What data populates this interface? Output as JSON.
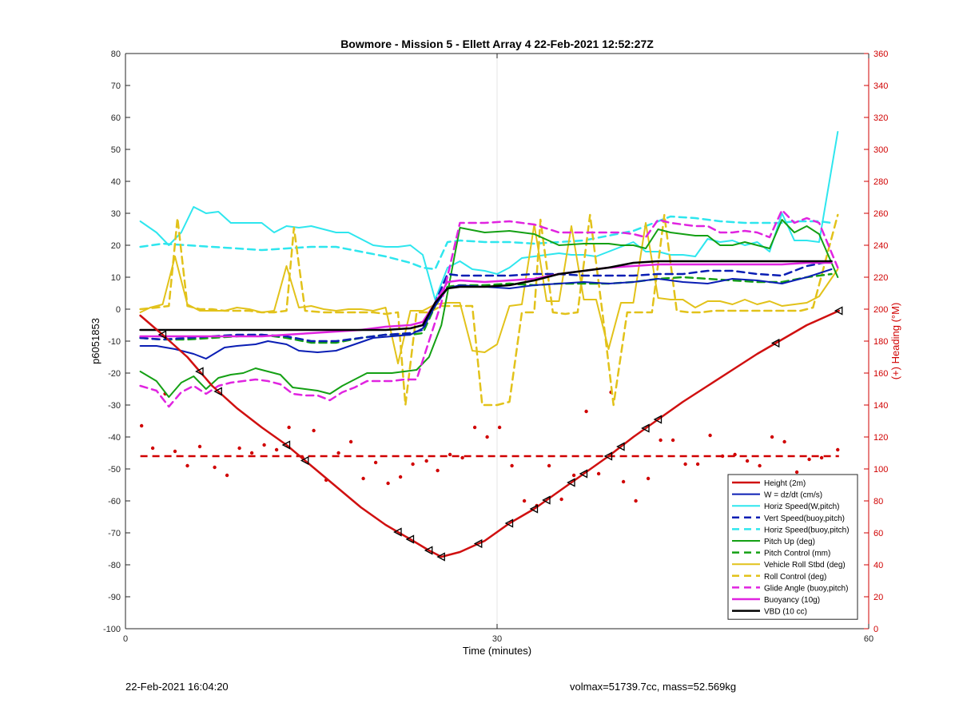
{
  "chart_data": {
    "type": "line",
    "title": "Bowmore - Mission 5 - Ellett Array 4 22-Feb-2021 12:52:27Z",
    "xlabel": "Time (minutes)",
    "ylabel": "p6051853",
    "ylabel_right": "(+) Heading (°M)",
    "xlim": [
      0,
      60
    ],
    "ylim": [
      -100,
      80
    ],
    "ylim_right": [
      0,
      360
    ],
    "xticks": [
      0,
      30,
      60
    ],
    "yticks": [
      -100,
      -90,
      -80,
      -70,
      -60,
      -50,
      -40,
      -30,
      -20,
      -10,
      0,
      10,
      20,
      30,
      40,
      50,
      60,
      70,
      80
    ],
    "yticks_right": [
      0,
      20,
      40,
      60,
      80,
      100,
      120,
      140,
      160,
      180,
      200,
      220,
      240,
      260,
      280,
      300,
      320,
      340,
      360
    ],
    "grid": "x at 30 only",
    "legend_position": "bottom-right",
    "colors": {
      "right_axis": "#d00000",
      "height": "#d01010",
      "w": "#0a1eb4",
      "horiz_speed": "#2ee6ee",
      "pitch": "#14a014",
      "roll": "#e2c21a",
      "glide": "#e024e0",
      "vbd": "#000000"
    },
    "series": [
      {
        "name": "Height (2m)",
        "color": "#d01010",
        "style": "solid",
        "width": 2.5,
        "x": [
          1.2,
          3,
          5,
          7,
          9,
          11,
          13,
          15,
          17,
          19,
          21,
          23,
          24.5,
          25.5,
          27,
          29,
          31,
          33,
          35,
          37,
          39,
          41,
          43,
          45,
          47,
          49,
          51,
          53,
          55,
          57.6
        ],
        "y": [
          -2,
          -8,
          -15,
          -24,
          -31,
          -37,
          -42.5,
          -49,
          -55.5,
          -62,
          -67.5,
          -72,
          -75.5,
          -77.5,
          -76,
          -72.5,
          -67,
          -62.5,
          -57,
          -51.5,
          -46,
          -40,
          -34.5,
          -29,
          -24,
          -19,
          -14,
          -9.5,
          -5,
          -0.5
        ]
      },
      {
        "name": "W = dz/dt (cm/s)",
        "color": "#0a1eb4",
        "style": "solid",
        "width": 2,
        "x": [
          1.2,
          2.5,
          4,
          5.5,
          6.5,
          8,
          9,
          10.5,
          11.5,
          13,
          14,
          15.5,
          17,
          18.5,
          20,
          21.5,
          23,
          24,
          25,
          26,
          27,
          29,
          31,
          33,
          35,
          37,
          39,
          41,
          43,
          45,
          47,
          49,
          51,
          53,
          55,
          57
        ],
        "y": [
          -11.5,
          -11.5,
          -12.5,
          -14,
          -15.5,
          -12,
          -11.5,
          -11,
          -10,
          -11,
          -13,
          -13.5,
          -13,
          -11,
          -9,
          -8.5,
          -8,
          -6,
          1,
          6.5,
          7.5,
          7,
          6.5,
          7.5,
          8,
          8.5,
          8,
          8.5,
          9.5,
          8.5,
          8,
          9.5,
          9,
          8,
          10,
          12.5
        ]
      },
      {
        "name": "Horiz Speed(W,pitch)",
        "color": "#2ee6ee",
        "style": "solid",
        "width": 2,
        "x": [
          1.2,
          2.5,
          3.5,
          4.5,
          5.5,
          6.5,
          7.5,
          8.5,
          10,
          11,
          12,
          13,
          14,
          15,
          16,
          17,
          18,
          19,
          20,
          21,
          22,
          23,
          24,
          25,
          26,
          27,
          28,
          29,
          30,
          31,
          32,
          33,
          34,
          35,
          36,
          37,
          38,
          39,
          40,
          41,
          42,
          43,
          44,
          45,
          46,
          47,
          48,
          49,
          50,
          51,
          52,
          53,
          54,
          55,
          56,
          57.5
        ],
        "y": [
          27.5,
          24,
          20,
          24,
          32,
          30,
          30.5,
          27,
          27,
          27,
          24,
          26,
          25.5,
          26,
          25,
          24,
          24,
          22,
          20,
          19.5,
          19.5,
          20,
          17,
          3,
          13,
          15,
          12.5,
          12,
          11,
          13,
          16,
          16.5,
          17,
          17.5,
          17,
          17,
          16.5,
          18,
          19.5,
          21,
          18,
          18,
          17,
          17,
          16.5,
          22,
          21,
          21.5,
          20,
          21,
          18,
          30,
          21.5,
          21.5,
          21,
          55.5
        ]
      },
      {
        "name": "Vert Speed(buoy,pitch)",
        "color": "#0a1eb4",
        "style": "dashed",
        "width": 2.5,
        "x": [
          1.2,
          3,
          5,
          7,
          9,
          11,
          13,
          15,
          17,
          19,
          21,
          23,
          24,
          25,
          26,
          27,
          29,
          31,
          33,
          35,
          37,
          39,
          41,
          43,
          45,
          47,
          49,
          51,
          53,
          55,
          57
        ],
        "y": [
          -9,
          -9.5,
          -9,
          -8.5,
          -8,
          -8,
          -8.5,
          -10,
          -10,
          -9,
          -8,
          -7.5,
          -6.5,
          2,
          11,
          10.5,
          10.5,
          10.5,
          11,
          11,
          10.5,
          10.5,
          10.5,
          11,
          11,
          12,
          12,
          11,
          10.5,
          13.5,
          15
        ]
      },
      {
        "name": "Horiz Speed(buoy,pitch)",
        "color": "#2ee6ee",
        "style": "dashed",
        "width": 2.5,
        "x": [
          1.2,
          3,
          5,
          7,
          9,
          11,
          13,
          15,
          17,
          19,
          21,
          23,
          24,
          25,
          26,
          27,
          29,
          31,
          33,
          35,
          37,
          39,
          41,
          42,
          44,
          46,
          48,
          50,
          52,
          53,
          54,
          55,
          56,
          57
        ],
        "y": [
          19.5,
          20.5,
          20,
          19.5,
          19,
          18.5,
          19,
          19.5,
          19.5,
          18,
          16.5,
          14.5,
          13,
          12.5,
          21,
          21.5,
          21,
          21,
          20.5,
          21,
          21.5,
          23,
          24.5,
          26,
          29,
          28.5,
          27.5,
          27,
          27,
          27,
          27.5,
          27.5,
          27.5,
          27
        ]
      },
      {
        "name": "Pitch Up (deg)",
        "color": "#14a014",
        "style": "solid",
        "width": 2,
        "x": [
          1.2,
          2.5,
          3.5,
          4.5,
          5.5,
          6.5,
          7.5,
          8.5,
          9.5,
          10.5,
          11.5,
          12.5,
          13.5,
          14.5,
          15.5,
          16.5,
          17.5,
          18.5,
          19.5,
          20.5,
          21.5,
          22.5,
          23.5,
          24.5,
          25.5,
          27,
          29,
          31,
          33,
          35,
          37,
          39,
          40,
          41,
          42,
          43,
          44,
          45,
          46,
          47,
          48,
          49,
          50,
          51,
          52,
          53,
          54,
          55,
          56,
          57.5
        ],
        "y": [
          -19.5,
          -22.5,
          -27.5,
          -23,
          -21,
          -25,
          -21.5,
          -20.5,
          -20,
          -18.5,
          -19.5,
          -20.5,
          -24.5,
          -25,
          -25.5,
          -26.5,
          -24,
          -22,
          -20,
          -20,
          -20,
          -19.5,
          -19,
          -15,
          -5,
          25.5,
          24,
          24.5,
          23.5,
          20,
          20.5,
          20.5,
          20,
          20,
          19,
          25,
          24,
          23.5,
          23,
          23,
          20,
          20,
          21,
          20,
          19,
          28,
          24,
          26,
          23.5,
          10
        ]
      },
      {
        "name": "Pitch Control (mm)",
        "color": "#14a014",
        "style": "dashed",
        "width": 2.5,
        "x": [
          1.2,
          3,
          5,
          7,
          9,
          11,
          13,
          15,
          17,
          19,
          21,
          23,
          24,
          25,
          26,
          27,
          29,
          31,
          33,
          35,
          37,
          39,
          41,
          43,
          45,
          47,
          49,
          51,
          53,
          55,
          57
        ],
        "y": [
          -9,
          -9.5,
          -9.5,
          -9,
          -8.5,
          -8,
          -9,
          -10.5,
          -10.5,
          -9,
          -8,
          -8,
          -7.5,
          1,
          7,
          7.5,
          7.5,
          8,
          7.5,
          8,
          8,
          8,
          8.5,
          9.5,
          10,
          9.5,
          9,
          8.5,
          8.5,
          10,
          11
        ]
      },
      {
        "name": "Vehicle Roll Stbd (deg)",
        "color": "#e2c21a",
        "style": "solid",
        "width": 2,
        "x": [
          1.2,
          2,
          3,
          4,
          5,
          6,
          7,
          8,
          9,
          10,
          11,
          12,
          13,
          14,
          15,
          16,
          17,
          18,
          19,
          20,
          21,
          22,
          23,
          24,
          25,
          26,
          27,
          28,
          29,
          30,
          31,
          32,
          33,
          34,
          35,
          36,
          37,
          38,
          39,
          40,
          41,
          42,
          43,
          44,
          45,
          46,
          47,
          48,
          49,
          50,
          51,
          52,
          53,
          54,
          55,
          56,
          57.5
        ],
        "y": [
          -1,
          0.5,
          1.5,
          16.5,
          1.5,
          -0.5,
          -0.5,
          -0.5,
          0.5,
          0,
          -1,
          -0.5,
          13.5,
          0.5,
          1,
          0,
          -0.5,
          0,
          0,
          -0.5,
          0.5,
          -17,
          -0.5,
          -0.5,
          1.5,
          2,
          2,
          -13,
          -13.5,
          -11,
          1,
          1.5,
          26.5,
          2.5,
          2.5,
          26,
          3,
          3,
          -12.5,
          2,
          2,
          27,
          3.5,
          3,
          3,
          0.5,
          2.5,
          2.5,
          1.5,
          3,
          1.5,
          2.5,
          1,
          1.5,
          2,
          4,
          12.5
        ]
      },
      {
        "name": "Roll Control (deg)",
        "color": "#e2c21a",
        "style": "dashed",
        "width": 2.5,
        "x": [
          1.2,
          2.5,
          3.5,
          4.2,
          5,
          6,
          7,
          8,
          9,
          10,
          11,
          12,
          13,
          13.6,
          14.5,
          16,
          17,
          18,
          19,
          20,
          21,
          22,
          22.6,
          23.5,
          24.5,
          25.5,
          27,
          28,
          28.8,
          30,
          31,
          32,
          33,
          33.5,
          34.5,
          35.5,
          36.5,
          37.5,
          38.5,
          39.4,
          40.5,
          41.5,
          42.5,
          43.5,
          44.5,
          45.5,
          46.5,
          47.5,
          48.5,
          49.5,
          50.5,
          51.5,
          52.5,
          53.5,
          54.5,
          55.5,
          57.5
        ],
        "y": [
          0,
          0.5,
          1,
          28.5,
          1,
          0,
          0,
          -0.5,
          -0.5,
          -0.5,
          -1,
          -1,
          -0.5,
          25.5,
          -0.5,
          -1,
          -1,
          -1,
          -1,
          -1,
          -1.5,
          -1,
          -30,
          -1,
          -1,
          1,
          1,
          1,
          -30,
          -30,
          -29,
          -1,
          -1,
          28,
          -1,
          -1.5,
          -1,
          29.5,
          -1,
          -30,
          -1,
          -1,
          -1,
          29.5,
          -0.5,
          -1,
          -1,
          -0.5,
          -0.5,
          -0.5,
          -0.5,
          -0.5,
          -0.5,
          -0.5,
          -0.5,
          0.5,
          29.5
        ]
      },
      {
        "name": "Glide Angle (buoy,pitch)",
        "color": "#e024e0",
        "style": "dashed",
        "width": 2.5,
        "x": [
          1.2,
          2.5,
          3.5,
          4.5,
          5.5,
          6.5,
          7.5,
          8.5,
          9.5,
          10.5,
          11.5,
          12.5,
          13.5,
          14.5,
          15.5,
          16.5,
          17.5,
          18.5,
          19.5,
          20.5,
          21.5,
          22.5,
          23.5,
          24.5,
          25.5,
          27,
          29,
          31,
          33,
          35,
          37,
          39,
          40,
          41,
          42,
          43,
          44,
          45,
          46,
          47,
          48,
          49,
          50,
          51,
          52,
          53,
          54,
          55,
          56,
          57.5
        ],
        "y": [
          -24,
          -25.5,
          -30.5,
          -26,
          -24,
          -26.5,
          -24,
          -23,
          -22.5,
          -22,
          -22.5,
          -23.5,
          -26.5,
          -27,
          -27,
          -28.5,
          -26,
          -24.5,
          -22.5,
          -22.5,
          -22.5,
          -22,
          -22,
          -10,
          2,
          27,
          27,
          27.5,
          26.5,
          24,
          24,
          24,
          24,
          23.5,
          22.5,
          28,
          27,
          26.5,
          26,
          26,
          24,
          24,
          24.5,
          24,
          22.5,
          31,
          27,
          28.5,
          27,
          13
        ]
      },
      {
        "name": "Buoyancy (10g)",
        "color": "#e024e0",
        "style": "solid",
        "width": 2.5,
        "x": [
          1.2,
          3,
          5,
          7,
          9,
          11,
          13,
          15,
          17,
          19,
          21,
          23,
          24,
          25,
          26,
          27,
          29,
          31,
          33,
          35,
          37,
          39,
          41,
          43,
          45,
          47,
          49,
          51,
          53,
          55,
          57
        ],
        "y": [
          -8.5,
          -8.5,
          -8.5,
          -8.5,
          -8.5,
          -8.5,
          -8,
          -7.5,
          -7,
          -6.5,
          -5.5,
          -5,
          -4,
          2,
          8.5,
          9,
          8.5,
          9,
          9.5,
          11,
          12,
          13,
          13.5,
          14,
          14,
          14,
          14,
          14,
          14,
          14.5,
          14.5
        ]
      },
      {
        "name": "VBD (10 cc)",
        "color": "#000000",
        "style": "solid",
        "width": 2.5,
        "x": [
          1.2,
          3,
          5,
          7,
          9,
          11,
          13,
          15,
          17,
          19,
          21,
          23,
          24,
          25,
          26,
          27,
          29,
          31,
          33,
          35,
          37,
          39,
          41,
          43,
          45,
          47,
          49,
          51,
          53,
          55,
          57
        ],
        "y": [
          -6.5,
          -6.5,
          -6.5,
          -6.5,
          -6.5,
          -6.5,
          -6.5,
          -6.5,
          -6.5,
          -6.5,
          -6.5,
          -6,
          -5,
          2,
          6.5,
          7,
          7,
          7.5,
          9,
          11,
          12,
          13,
          14.5,
          15,
          15,
          15,
          15,
          15,
          15,
          15,
          15
        ]
      }
    ],
    "heading_axis": {
      "scatter_x": [
        1.3,
        2.2,
        3.2,
        4,
        5,
        6,
        7.2,
        8.2,
        9.2,
        10.2,
        11.2,
        12.2,
        13.2,
        14.3,
        15.2,
        16.2,
        17.2,
        18.2,
        19.2,
        20.2,
        21.2,
        22.2,
        23.2,
        24.3,
        25.2,
        26.2,
        27.2,
        28.2,
        29.2,
        30.2,
        31.2,
        32.2,
        33.2,
        34.2,
        35.2,
        36.2,
        37.2,
        38.2,
        39.2,
        40.2,
        41.2,
        42.2,
        43.2,
        44.2,
        45.2,
        46.2,
        47.2,
        48.2,
        49.2,
        50.2,
        51.2,
        52.2,
        53.2,
        54.2,
        55.2,
        56.2,
        57.5
      ],
      "scatter_y": [
        127,
        113,
        147,
        111,
        102,
        114,
        101,
        96,
        113,
        110,
        115,
        112,
        126,
        107,
        124,
        93,
        110,
        117,
        94,
        104,
        91,
        95,
        103,
        105,
        99,
        109,
        107,
        126,
        120,
        126,
        102,
        80,
        77,
        102,
        81,
        96,
        136,
        97,
        148,
        92,
        80,
        94,
        118,
        118,
        103,
        103,
        121,
        108,
        109,
        105,
        102,
        120,
        117,
        98,
        106,
        107,
        112
      ],
      "mean_heading": 108
    }
  },
  "footer": {
    "left": "22-Feb-2021 16:04:20",
    "right": "volmax=51739.7cc, mass=52.569kg"
  }
}
